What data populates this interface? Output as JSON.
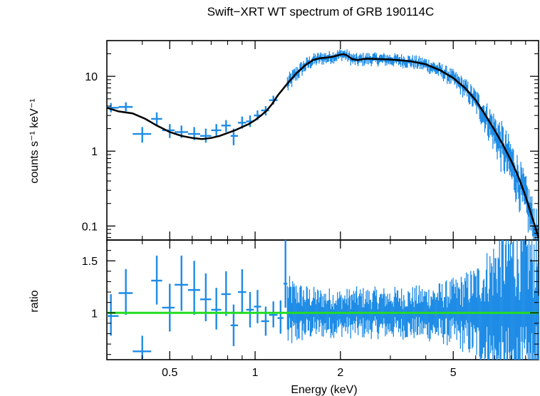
{
  "chart_data": [
    {
      "type": "scatter",
      "title": "Swift−XRT WT spectrum of GRB 190114C",
      "xlabel": "Energy (keV)",
      "ylabel": "counts s⁻¹ keV⁻¹",
      "xscale": "log",
      "yscale": "log",
      "xlim": [
        0.3,
        10
      ],
      "ylim": [
        0.065,
        30
      ],
      "x_ticks": [
        {
          "value": 0.5,
          "label": "0.5"
        },
        {
          "value": 1,
          "label": "1"
        },
        {
          "value": 2,
          "label": "2"
        },
        {
          "value": 5,
          "label": "5"
        }
      ],
      "y_ticks": [
        {
          "value": 10,
          "label": "10"
        },
        {
          "value": 1,
          "label": "1"
        },
        {
          "value": 0.1,
          "label": "0.1"
        }
      ],
      "series": [
        {
          "kind": "data",
          "color": "#1e8ce6",
          "points": [
            {
              "x": 0.31,
              "y": 3.8,
              "xlo": 0.3,
              "xhi": 0.33,
              "ylo": 3.3,
              "yhi": 4.4
            },
            {
              "x": 0.35,
              "y": 3.9,
              "xlo": 0.33,
              "xhi": 0.37,
              "ylo": 3.4,
              "yhi": 4.5
            },
            {
              "x": 0.4,
              "y": 1.7,
              "xlo": 0.37,
              "xhi": 0.43,
              "ylo": 1.3,
              "yhi": 2.1
            },
            {
              "x": 0.45,
              "y": 2.7,
              "xlo": 0.43,
              "xhi": 0.47,
              "ylo": 2.2,
              "yhi": 3.3
            },
            {
              "x": 0.5,
              "y": 1.9,
              "xlo": 0.47,
              "xhi": 0.52,
              "ylo": 1.5,
              "yhi": 2.3
            },
            {
              "x": 0.55,
              "y": 1.8,
              "xlo": 0.52,
              "xhi": 0.58,
              "ylo": 1.5,
              "yhi": 2.2
            },
            {
              "x": 0.61,
              "y": 1.7,
              "xlo": 0.58,
              "xhi": 0.64,
              "ylo": 1.4,
              "yhi": 2.1
            },
            {
              "x": 0.67,
              "y": 1.6,
              "xlo": 0.64,
              "xhi": 0.7,
              "ylo": 1.3,
              "yhi": 2.0
            },
            {
              "x": 0.73,
              "y": 1.9,
              "xlo": 0.7,
              "xhi": 0.76,
              "ylo": 1.6,
              "yhi": 2.3
            },
            {
              "x": 0.79,
              "y": 2.2,
              "xlo": 0.76,
              "xhi": 0.82,
              "ylo": 1.8,
              "yhi": 2.6
            },
            {
              "x": 0.84,
              "y": 1.6,
              "xlo": 0.82,
              "xhi": 0.87,
              "ylo": 1.2,
              "yhi": 2.0
            },
            {
              "x": 0.9,
              "y": 2.4,
              "xlo": 0.87,
              "xhi": 0.93,
              "ylo": 2.0,
              "yhi": 2.9
            },
            {
              "x": 0.96,
              "y": 2.5,
              "xlo": 0.93,
              "xhi": 0.99,
              "ylo": 2.1,
              "yhi": 3.0
            },
            {
              "x": 1.02,
              "y": 3.0,
              "xlo": 0.99,
              "xhi": 1.05,
              "ylo": 2.6,
              "yhi": 3.5
            },
            {
              "x": 1.09,
              "y": 3.5,
              "xlo": 1.05,
              "xhi": 1.12,
              "ylo": 3.0,
              "yhi": 4.0
            },
            {
              "x": 1.16,
              "y": 4.8,
              "xlo": 1.12,
              "xhi": 1.2,
              "ylo": 4.2,
              "yhi": 5.5
            }
          ]
        },
        {
          "kind": "model",
          "color": "#000000",
          "x": [
            0.3,
            0.33,
            0.37,
            0.41,
            0.45,
            0.5,
            0.55,
            0.6,
            0.65,
            0.7,
            0.75,
            0.8,
            0.85,
            0.9,
            0.95,
            1.0,
            1.05,
            1.1,
            1.15,
            1.2,
            1.3,
            1.4,
            1.5,
            1.6,
            1.7,
            1.8,
            1.9,
            2.0,
            2.05,
            2.1,
            2.2,
            2.3,
            2.4,
            2.5,
            2.7,
            3.0,
            3.5,
            4.0,
            4.5,
            5.0,
            5.5,
            6.0,
            6.5,
            7.0,
            7.5,
            8.0,
            8.5,
            9.0,
            9.5,
            10.0
          ],
          "y": [
            3.8,
            3.4,
            3.2,
            2.7,
            2.2,
            1.8,
            1.6,
            1.5,
            1.45,
            1.5,
            1.6,
            1.75,
            1.9,
            2.1,
            2.3,
            2.6,
            3.0,
            3.5,
            4.3,
            5.5,
            8.0,
            11.0,
            14.0,
            16.5,
            17.5,
            17.8,
            18.5,
            19.5,
            19.8,
            19.2,
            17.0,
            16.5,
            17.0,
            17.2,
            17.0,
            16.8,
            16.0,
            14.5,
            12.0,
            9.5,
            7.0,
            4.8,
            3.0,
            1.9,
            1.2,
            0.75,
            0.45,
            0.25,
            0.13,
            0.07
          ]
        }
      ]
    },
    {
      "type": "scatter",
      "title": "",
      "xlabel": "Energy (keV)",
      "ylabel": "ratio",
      "xscale": "log",
      "yscale": "linear",
      "xlim": [
        0.3,
        10
      ],
      "ylim": [
        0.55,
        1.7
      ],
      "y_ticks": [
        {
          "value": 1.5,
          "label": "1.5"
        },
        {
          "value": 1,
          "label": "1"
        }
      ],
      "reference_line": {
        "y": 1,
        "color": "#22dd22"
      },
      "series": [
        {
          "kind": "data",
          "color": "#1e8ce6",
          "points": [
            {
              "x": 0.31,
              "y": 0.97,
              "xlo": 0.3,
              "xhi": 0.33,
              "ylo": 0.78,
              "yhi": 1.18
            },
            {
              "x": 0.35,
              "y": 1.19,
              "xlo": 0.33,
              "xhi": 0.37,
              "ylo": 0.98,
              "yhi": 1.42
            },
            {
              "x": 0.4,
              "y": 0.63,
              "xlo": 0.37,
              "xhi": 0.43,
              "ylo": 0.5,
              "yhi": 0.78
            },
            {
              "x": 0.45,
              "y": 1.31,
              "xlo": 0.43,
              "xhi": 0.47,
              "ylo": 1.08,
              "yhi": 1.55
            },
            {
              "x": 0.5,
              "y": 1.05,
              "xlo": 0.47,
              "xhi": 0.52,
              "ylo": 0.82,
              "yhi": 1.28
            },
            {
              "x": 0.55,
              "y": 1.27,
              "xlo": 0.52,
              "xhi": 0.58,
              "ylo": 1.02,
              "yhi": 1.55
            },
            {
              "x": 0.61,
              "y": 1.22,
              "xlo": 0.58,
              "xhi": 0.64,
              "ylo": 0.98,
              "yhi": 1.5
            },
            {
              "x": 0.67,
              "y": 1.13,
              "xlo": 0.64,
              "xhi": 0.7,
              "ylo": 0.92,
              "yhi": 1.38
            },
            {
              "x": 0.73,
              "y": 1.03,
              "xlo": 0.7,
              "xhi": 0.76,
              "ylo": 0.84,
              "yhi": 1.24
            },
            {
              "x": 0.79,
              "y": 1.18,
              "xlo": 0.76,
              "xhi": 0.82,
              "ylo": 0.97,
              "yhi": 1.4
            },
            {
              "x": 0.84,
              "y": 0.88,
              "xlo": 0.82,
              "xhi": 0.87,
              "ylo": 0.68,
              "yhi": 1.08
            },
            {
              "x": 0.9,
              "y": 1.2,
              "xlo": 0.87,
              "xhi": 0.93,
              "ylo": 0.99,
              "yhi": 1.42
            },
            {
              "x": 0.96,
              "y": 1.03,
              "xlo": 0.93,
              "xhi": 0.99,
              "ylo": 0.86,
              "yhi": 1.2
            },
            {
              "x": 1.02,
              "y": 1.06,
              "xlo": 0.99,
              "xhi": 1.05,
              "ylo": 0.9,
              "yhi": 1.22
            },
            {
              "x": 1.09,
              "y": 0.92,
              "xlo": 1.05,
              "xhi": 1.12,
              "ylo": 0.78,
              "yhi": 1.06
            },
            {
              "x": 1.16,
              "y": 0.98,
              "xlo": 1.12,
              "xhi": 1.2,
              "ylo": 0.86,
              "yhi": 1.11
            },
            {
              "x": 1.23,
              "y": 0.95,
              "xlo": 1.2,
              "xhi": 1.26,
              "ylo": 0.8,
              "yhi": 1.12
            },
            {
              "x": 1.28,
              "y": 1.28,
              "xlo": 1.26,
              "xhi": 1.3,
              "ylo": 1.05,
              "yhi": 1.7
            }
          ]
        }
      ]
    }
  ]
}
